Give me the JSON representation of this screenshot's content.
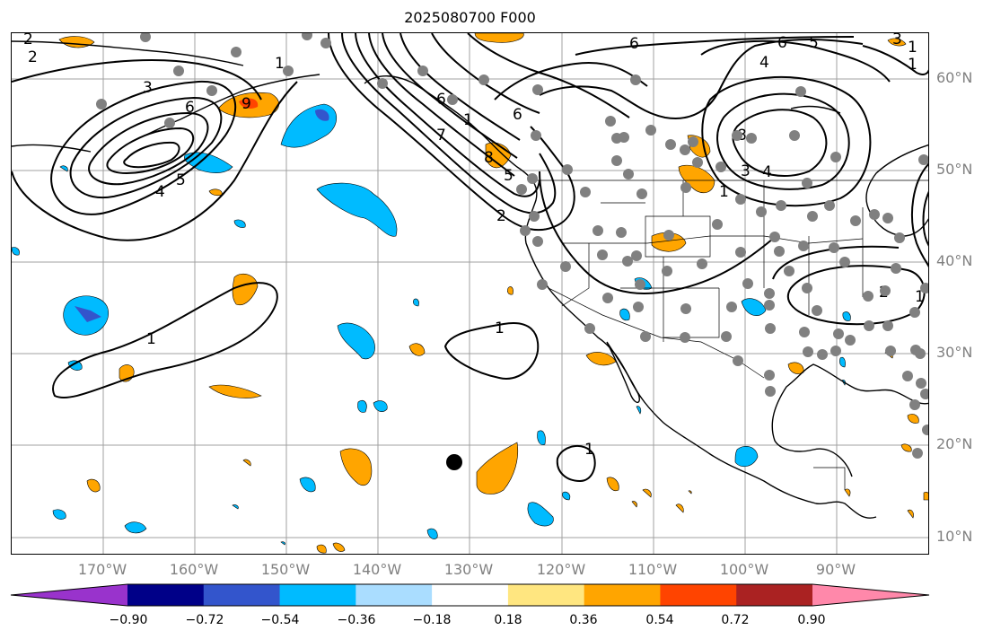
{
  "title": "2025080700 F000",
  "lon_labels": [
    "170°W",
    "160°W",
    "150°W",
    "140°W",
    "130°W",
    "120°W",
    "110°W",
    "100°W",
    "90°W"
  ],
  "lat_labels": [
    "60°N",
    "50°N",
    "40°N",
    "30°N",
    "20°N",
    "10°N"
  ],
  "colorbar": {
    "colors": [
      "#9933cc",
      "#000088",
      "#3355cc",
      "#00bbff",
      "#aaddff",
      "#ffffff",
      "#ffe680",
      "#ffa500",
      "#ff4400",
      "#aa2222",
      "#ff88aa"
    ],
    "tick_labels": [
      "−0.90",
      "−0.72",
      "−0.54",
      "−0.36",
      "−0.18",
      "0.18",
      "0.36",
      "0.54",
      "0.72",
      "0.90"
    ]
  },
  "contour_labels": [
    "2",
    "3",
    "6",
    "9",
    "1",
    "6",
    "6",
    "6",
    "5",
    "4",
    "1",
    "8",
    "3",
    "4",
    "2",
    "1",
    "1",
    "1",
    "6",
    "1",
    "1",
    "4",
    "5",
    "7",
    "2",
    "8",
    "1",
    "2",
    "1",
    "5",
    "3"
  ],
  "colors": {
    "positive": "#ffa500",
    "negative": "#00bbff",
    "neg_light": "#aaddff",
    "neg_strong": "#3355cc",
    "pos_strong": "#ff4400",
    "stations": "#808080",
    "grid": "#a0a0a0"
  }
}
